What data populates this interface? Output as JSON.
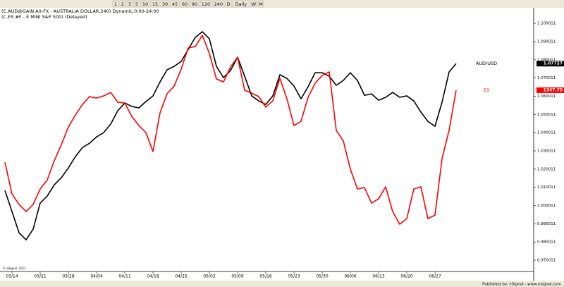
{
  "toolbar": {
    "buttons": [
      "1",
      "2",
      "3",
      "5",
      "10",
      "15",
      "30",
      "45",
      "60",
      "90",
      "120",
      "240",
      "D",
      "Daily",
      "W",
      "M"
    ]
  },
  "chart_data": {
    "type": "line",
    "titles": [
      "(C.AUD@GAIN A0-FX - AUSTRALIA DOLLAR,240) Dynamic,0:00-24:00",
      "(C.ES #F - E MINI S&P 500)  (Delayed)"
    ],
    "categories": [
      null,
      "03/14",
      null,
      null,
      null,
      "03/21",
      null,
      null,
      null,
      "03/28",
      null,
      null,
      null,
      "04/04",
      null,
      null,
      null,
      "04/11",
      null,
      null,
      null,
      "04/18",
      null,
      null,
      null,
      "04/25",
      null,
      null,
      null,
      "05/02",
      null,
      null,
      null,
      "05/09",
      null,
      null,
      null,
      "05/16",
      null,
      null,
      null,
      "05/23",
      null,
      null,
      null,
      "05/30",
      null,
      null,
      null,
      "06/06",
      null,
      null,
      null,
      "06/13",
      null,
      null,
      null,
      "06/20",
      null,
      null,
      null,
      "06/27",
      null,
      null,
      null
    ],
    "series": [
      {
        "name": "AUD/USD",
        "color": "#000000",
        "last_label": "1.07727",
        "values": [
          1.0083,
          0.9967,
          0.9851,
          0.9812,
          0.987,
          1.0014,
          1.0052,
          1.0114,
          1.0153,
          1.0207,
          1.0269,
          1.0319,
          1.0342,
          1.0377,
          1.04,
          1.0447,
          1.052,
          1.0563,
          1.0544,
          1.0536,
          1.0571,
          1.0602,
          1.0679,
          1.0745,
          1.0764,
          1.0791,
          1.0857,
          1.0923,
          1.0954,
          1.0915,
          1.0764,
          1.0702,
          1.0741,
          1.0814,
          1.071,
          1.0602,
          1.0574,
          1.0555,
          1.0602,
          1.0718,
          1.0698,
          1.0656,
          1.0586,
          1.0652,
          1.0729,
          1.0729,
          1.071,
          1.066,
          1.0687,
          1.0729,
          1.0687,
          1.0605,
          1.0613,
          1.0578,
          1.0594,
          1.0621,
          1.0594,
          1.0602,
          1.0574,
          1.0513,
          1.0462,
          1.0435,
          1.0567,
          1.0733,
          1.0779
        ]
      },
      {
        "name": "ES",
        "color": "#ff0000",
        "axis": "y2",
        "last_label": "1347.75",
        "values": [
          1309.3,
          1291.9,
          1286.1,
          1282.2,
          1286.1,
          1294.6,
          1299.6,
          1310.1,
          1319.0,
          1328.7,
          1335.3,
          1341.1,
          1345.4,
          1344.6,
          1345.8,
          1347.7,
          1342.3,
          1341.9,
          1334.5,
          1329.5,
          1325.6,
          1315.2,
          1336.5,
          1347.0,
          1351.2,
          1360.5,
          1372.2,
          1372.9,
          1379.1,
          1369.1,
          1355.1,
          1353.5,
          1361.7,
          1367.1,
          1348.9,
          1347.3,
          1345.4,
          1339.6,
          1343.1,
          1355.5,
          1344.2,
          1329.5,
          1331.8,
          1345.0,
          1352.8,
          1357.0,
          1359.0,
          1326.8,
          1321.0,
          1305.5,
          1294.6,
          1295.4,
          1286.8,
          1289.2,
          1295.8,
          1282.2,
          1275.2,
          1278.3,
          1294.6,
          1295.8,
          1278.3,
          1280.2,
          1311.3,
          1326.8,
          1348.9
        ]
      }
    ],
    "ylim": [
      0.9646,
      1.1043
    ],
    "yticks": [
      1.100011,
      1.090011,
      1.080011,
      1.070011,
      1.060011,
      1.050011,
      1.040011,
      1.030011,
      1.020011,
      1.010011,
      1.000011,
      0.990011,
      0.980011,
      0.970011
    ],
    "y2lim": [
      1250,
      1390
    ],
    "grid": false
  },
  "footer": {
    "copyright": "© eSignal, 2011",
    "publisher": "Published by: eSignal - www.esignal.com"
  }
}
